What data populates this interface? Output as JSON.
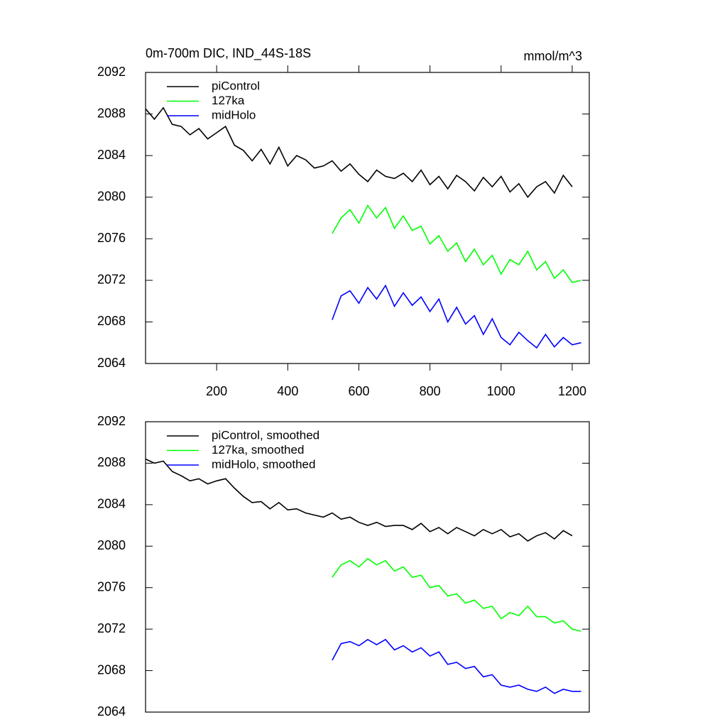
{
  "chart_data": [
    {
      "type": "line",
      "title": "0m-700m DIC, IND_44S-18S",
      "units": "mmol/m^3",
      "xlim": [
        0,
        1248
      ],
      "ylim": [
        2064,
        2092
      ],
      "xticks": [
        200,
        400,
        600,
        800,
        1000,
        1200
      ],
      "yticks": [
        2064,
        2068,
        2072,
        2076,
        2080,
        2084,
        2088,
        2092
      ],
      "series": [
        {
          "name": "piControl",
          "color": "#000000",
          "x": [
            0,
            25,
            50,
            75,
            100,
            125,
            150,
            175,
            200,
            225,
            250,
            275,
            300,
            325,
            350,
            375,
            400,
            425,
            450,
            475,
            500,
            525,
            550,
            575,
            600,
            625,
            650,
            675,
            700,
            725,
            750,
            775,
            800,
            825,
            850,
            875,
            900,
            925,
            950,
            975,
            1000,
            1025,
            1050,
            1075,
            1100,
            1125,
            1150,
            1175,
            1200
          ],
          "values": [
            2088.5,
            2087.5,
            2088.6,
            2087.0,
            2086.8,
            2086.0,
            2086.6,
            2085.6,
            2086.2,
            2086.8,
            2085.0,
            2084.5,
            2083.5,
            2084.6,
            2083.2,
            2084.8,
            2083.0,
            2084.0,
            2083.6,
            2082.8,
            2083.0,
            2083.5,
            2082.5,
            2083.2,
            2082.2,
            2081.5,
            2082.6,
            2082.0,
            2081.8,
            2082.3,
            2081.5,
            2082.6,
            2081.2,
            2082.0,
            2080.8,
            2082.1,
            2081.5,
            2080.6,
            2081.9,
            2081.0,
            2082.0,
            2080.5,
            2081.3,
            2080.0,
            2081.0,
            2081.5,
            2080.4,
            2082.1,
            2081.0
          ]
        },
        {
          "name": "127ka",
          "color": "#00ff00",
          "x": [
            525,
            550,
            575,
            600,
            625,
            650,
            675,
            700,
            725,
            750,
            775,
            800,
            825,
            850,
            875,
            900,
            925,
            950,
            975,
            1000,
            1025,
            1050,
            1075,
            1100,
            1125,
            1150,
            1175,
            1200,
            1225
          ],
          "values": [
            2076.5,
            2078.0,
            2078.8,
            2077.5,
            2079.2,
            2078.0,
            2079.0,
            2077.0,
            2078.2,
            2076.8,
            2077.2,
            2075.5,
            2076.3,
            2074.8,
            2075.6,
            2073.8,
            2075.0,
            2073.5,
            2074.4,
            2072.6,
            2074.0,
            2073.5,
            2074.8,
            2073.0,
            2073.8,
            2072.2,
            2073.0,
            2071.8,
            2072.0
          ]
        },
        {
          "name": "midHolo",
          "color": "#0000ff",
          "x": [
            525,
            550,
            575,
            600,
            625,
            650,
            675,
            700,
            725,
            750,
            775,
            800,
            825,
            850,
            875,
            900,
            925,
            950,
            975,
            1000,
            1025,
            1050,
            1075,
            1100,
            1125,
            1150,
            1175,
            1200,
            1225
          ],
          "values": [
            2068.2,
            2070.5,
            2071.0,
            2069.8,
            2071.3,
            2070.2,
            2071.5,
            2069.5,
            2070.8,
            2069.6,
            2070.4,
            2069.0,
            2070.2,
            2068.0,
            2069.4,
            2067.8,
            2068.6,
            2066.8,
            2068.3,
            2066.5,
            2065.8,
            2067.0,
            2066.2,
            2065.5,
            2066.8,
            2065.6,
            2066.5,
            2065.8,
            2066.0
          ]
        }
      ]
    },
    {
      "type": "line",
      "xlim": [
        0,
        1248
      ],
      "ylim": [
        2064,
        2092
      ],
      "yticks": [
        2064,
        2068,
        2072,
        2076,
        2080,
        2084,
        2088,
        2092
      ],
      "series": [
        {
          "name": "piControl, smoothed",
          "color": "#000000",
          "x": [
            0,
            25,
            50,
            75,
            100,
            125,
            150,
            175,
            200,
            225,
            250,
            275,
            300,
            325,
            350,
            375,
            400,
            425,
            450,
            475,
            500,
            525,
            550,
            575,
            600,
            625,
            650,
            675,
            700,
            725,
            750,
            775,
            800,
            825,
            850,
            875,
            900,
            925,
            950,
            975,
            1000,
            1025,
            1050,
            1075,
            1100,
            1125,
            1150,
            1175,
            1200
          ],
          "values": [
            2088.4,
            2088.0,
            2088.2,
            2087.2,
            2086.8,
            2086.3,
            2086.5,
            2086.0,
            2086.3,
            2086.5,
            2085.6,
            2084.8,
            2084.2,
            2084.3,
            2083.6,
            2084.2,
            2083.5,
            2083.6,
            2083.2,
            2083.0,
            2082.8,
            2083.2,
            2082.6,
            2082.8,
            2082.3,
            2082.0,
            2082.3,
            2081.9,
            2082.0,
            2082.0,
            2081.6,
            2082.2,
            2081.4,
            2081.8,
            2081.2,
            2081.8,
            2081.4,
            2081.0,
            2081.6,
            2081.2,
            2081.6,
            2080.9,
            2081.2,
            2080.5,
            2081.0,
            2081.3,
            2080.7,
            2081.5,
            2081.0
          ]
        },
        {
          "name": "127ka, smoothed",
          "color": "#00ff00",
          "x": [
            525,
            550,
            575,
            600,
            625,
            650,
            675,
            700,
            725,
            750,
            775,
            800,
            825,
            850,
            875,
            900,
            925,
            950,
            975,
            1000,
            1025,
            1050,
            1075,
            1100,
            1125,
            1150,
            1175,
            1200,
            1225
          ],
          "values": [
            2077.0,
            2078.2,
            2078.6,
            2078.0,
            2078.8,
            2078.2,
            2078.6,
            2077.6,
            2078.0,
            2077.0,
            2077.2,
            2076.0,
            2076.2,
            2075.2,
            2075.4,
            2074.5,
            2074.8,
            2074.0,
            2074.2,
            2073.0,
            2073.6,
            2073.3,
            2074.2,
            2073.2,
            2073.2,
            2072.6,
            2072.8,
            2072.0,
            2071.8
          ]
        },
        {
          "name": "midHolo, smoothed",
          "color": "#0000ff",
          "x": [
            525,
            550,
            575,
            600,
            625,
            650,
            675,
            700,
            725,
            750,
            775,
            800,
            825,
            850,
            875,
            900,
            925,
            950,
            975,
            1000,
            1025,
            1050,
            1075,
            1100,
            1125,
            1150,
            1175,
            1200,
            1225
          ],
          "values": [
            2069.0,
            2070.6,
            2070.8,
            2070.4,
            2071.0,
            2070.5,
            2071.0,
            2070.0,
            2070.4,
            2069.8,
            2070.2,
            2069.4,
            2069.8,
            2068.6,
            2068.8,
            2068.2,
            2068.4,
            2067.4,
            2067.6,
            2066.6,
            2066.4,
            2066.6,
            2066.2,
            2066.0,
            2066.4,
            2065.8,
            2066.2,
            2066.0,
            2066.0
          ]
        }
      ]
    }
  ]
}
